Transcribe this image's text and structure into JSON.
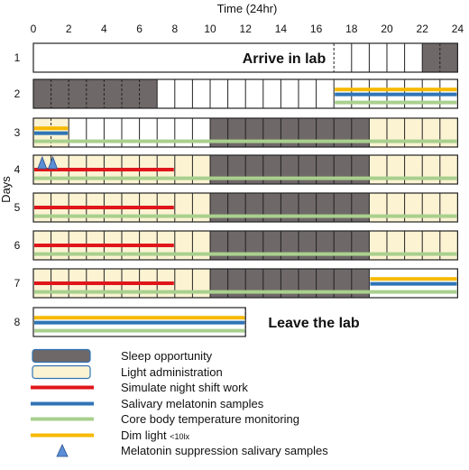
{
  "title": "Time (24hr)",
  "y_axis_label": "Days",
  "hour_ticks": [
    "0",
    "2",
    "4",
    "6",
    "8",
    "10",
    "12",
    "14",
    "16",
    "18",
    "20",
    "22",
    "24"
  ],
  "colors": {
    "sleep": "#6f6868",
    "light": "#fcf3d3",
    "night_shift": "#e0161b",
    "melatonin": "#2f74b6",
    "core_temp": "#a9d08e",
    "dim_light": "#f7b900",
    "suppression": "#5b8ed6"
  },
  "days": [
    {
      "label": "1",
      "sleep": [
        [
          22,
          24
        ]
      ],
      "light": [],
      "dashes": [
        17,
        23
      ],
      "bars": {},
      "annotation": "Arrive in lab",
      "end": 24,
      "triangles": []
    },
    {
      "label": "2",
      "sleep": [
        [
          0,
          7
        ]
      ],
      "light": [],
      "dashes": [
        1,
        2,
        3,
        4,
        5,
        6
      ],
      "bars": {
        "dim_light": [
          17,
          24
        ],
        "melatonin": [
          17,
          24
        ],
        "core_temp": [
          17,
          24
        ]
      },
      "annotation": "",
      "end": 24,
      "triangles": []
    },
    {
      "label": "3",
      "sleep": [
        [
          10,
          19
        ]
      ],
      "light": [
        [
          0,
          2
        ],
        [
          19,
          24
        ]
      ],
      "dashes": [
        1
      ],
      "bars": {
        "dim_light": [
          0,
          2
        ],
        "melatonin": [
          0,
          2
        ],
        "core_temp": [
          0,
          24
        ]
      },
      "annotation": "",
      "end": 24,
      "triangles": []
    },
    {
      "label": "4",
      "sleep": [
        [
          10,
          19
        ]
      ],
      "light": [
        [
          0,
          10
        ],
        [
          19,
          24
        ]
      ],
      "dashes": [],
      "bars": {
        "night_shift": [
          0,
          8
        ],
        "core_temp": [
          0,
          24
        ]
      },
      "annotation": "",
      "end": 24,
      "triangles": [
        0.5,
        1.1
      ]
    },
    {
      "label": "5",
      "sleep": [
        [
          10,
          19
        ]
      ],
      "light": [
        [
          0,
          10
        ],
        [
          19,
          24
        ]
      ],
      "dashes": [],
      "bars": {
        "night_shift": [
          0,
          8
        ],
        "core_temp": [
          0,
          24
        ]
      },
      "annotation": "",
      "end": 24,
      "triangles": []
    },
    {
      "label": "6",
      "sleep": [
        [
          10,
          19
        ]
      ],
      "light": [
        [
          0,
          10
        ],
        [
          19,
          24
        ]
      ],
      "dashes": [],
      "bars": {
        "night_shift": [
          0,
          8
        ],
        "core_temp": [
          0,
          24
        ]
      },
      "annotation": "",
      "end": 24,
      "triangles": []
    },
    {
      "label": "7",
      "sleep": [
        [
          10,
          19
        ]
      ],
      "light": [
        [
          0,
          10
        ]
      ],
      "dashes": [],
      "bars": {
        "night_shift": [
          0,
          8
        ],
        "dim_light": [
          19,
          24
        ],
        "melatonin": [
          19,
          24
        ],
        "core_temp": [
          0,
          24
        ]
      },
      "annotation": "",
      "end": 24,
      "triangles": []
    },
    {
      "label": "8",
      "sleep": [],
      "light": [],
      "dashes": [
        12
      ],
      "bars": {
        "dim_light": [
          0,
          12
        ],
        "melatonin": [
          0,
          12
        ],
        "core_temp": [
          0,
          12
        ]
      },
      "annotation": "Leave the lab",
      "end": 12,
      "triangles": []
    }
  ],
  "legend": [
    {
      "key": "sleep",
      "label": "Sleep opportunity",
      "sub": ""
    },
    {
      "key": "light",
      "label": "Light administration",
      "sub": ""
    },
    {
      "key": "night_shift",
      "label": "Simulate night shift work",
      "sub": ""
    },
    {
      "key": "melatonin",
      "label": "Salivary melatonin samples",
      "sub": ""
    },
    {
      "key": "core_temp",
      "label": "Core body temperature monitoring",
      "sub": ""
    },
    {
      "key": "dim_light",
      "label": "Dim light ",
      "sub": "<10lx"
    },
    {
      "key": "suppression",
      "label": "Melatonin suppression salivary samples",
      "sub": ""
    }
  ]
}
